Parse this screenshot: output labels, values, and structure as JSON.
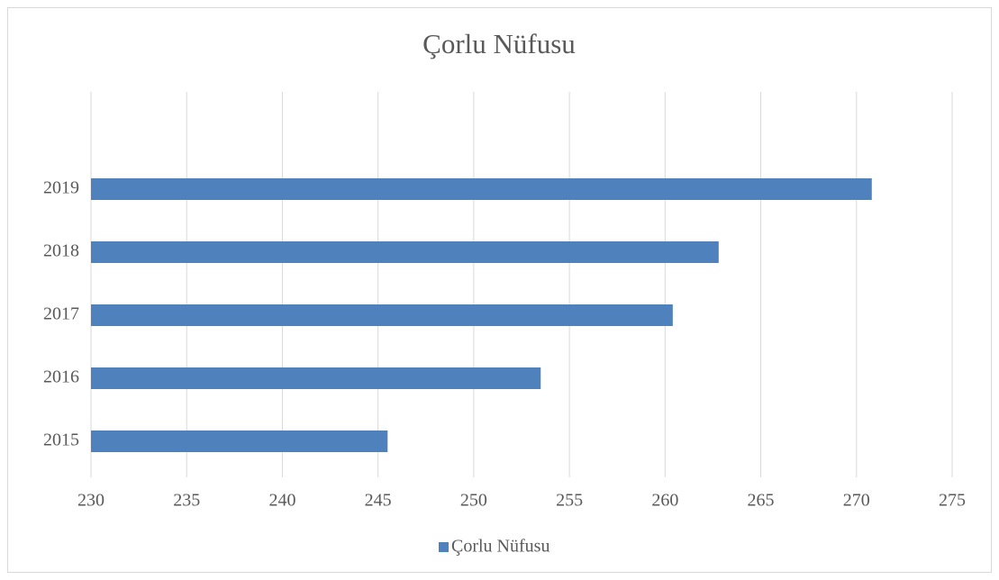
{
  "chart_data": {
    "type": "barh",
    "title": "Çorlu Nüfusu",
    "categories": [
      "2015",
      "2016",
      "2017",
      "2018",
      "2019"
    ],
    "series": [
      {
        "name": "Çorlu Nüfusu",
        "color": "#4f81bd",
        "values": [
          245.5,
          253.5,
          260.4,
          262.8,
          270.8
        ]
      }
    ],
    "xlim": [
      230,
      275
    ],
    "xticks": [
      230,
      235,
      240,
      245,
      250,
      255,
      260,
      265,
      270,
      275
    ],
    "grid": true,
    "legend": "bottom"
  }
}
